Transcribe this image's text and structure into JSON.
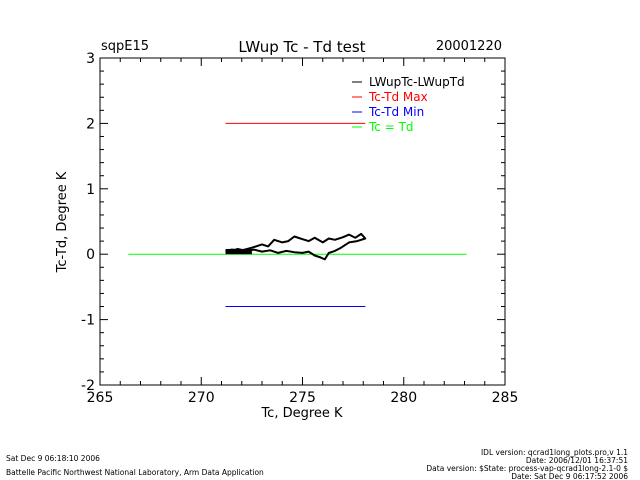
{
  "header": {
    "site": "sqpE15",
    "title": "LWup Tc - Td test",
    "date": "20001220"
  },
  "footer": {
    "left_line1": "Sat Dec  9 06:18:10 2006",
    "left_line2": "Battelle Pacific Northwest National Laboratory, Arm Data Application",
    "right_line1": "IDL version: qcrad1long_plots.pro,v 1.1",
    "right_line2": "Date: 2006/12/01 16:37:51",
    "right_line3": "Data version: $State: process-vap-qcrad1long-2.1-0 $",
    "right_line4": "Date: Sat Dec  9 06:17:52 2006"
  },
  "chart_data": {
    "type": "line",
    "xlabel": "Tc, Degree K",
    "ylabel": "Tc-Td, Degree K",
    "xlim": [
      265,
      285
    ],
    "ylim": [
      -2,
      3
    ],
    "xticks": [
      "265",
      "270",
      "275",
      "280",
      "285"
    ],
    "yticks": [
      "-2",
      "-1",
      "0",
      "1",
      "2",
      "3"
    ],
    "legend_position": "top-right",
    "series": [
      {
        "name": "LWupTc-LWupTd",
        "color": "#000000",
        "x": [
          271.2,
          271.5,
          272.0,
          272.5,
          273.0,
          273.3,
          273.6,
          274.0,
          274.3,
          274.6,
          275.0,
          275.3,
          275.6,
          276.0,
          276.3,
          276.6,
          277.0,
          277.3,
          277.6,
          277.9,
          278.1,
          277.7,
          277.3,
          276.9,
          276.6,
          276.3,
          276.1,
          275.9,
          275.6,
          275.3,
          275.0,
          274.6,
          274.2,
          273.8,
          273.4,
          273.0,
          272.6,
          272.2,
          271.8,
          271.4,
          271.2
        ],
        "y": [
          0.05,
          0.07,
          0.06,
          0.1,
          0.15,
          0.12,
          0.22,
          0.18,
          0.2,
          0.27,
          0.23,
          0.2,
          0.25,
          0.18,
          0.24,
          0.22,
          0.26,
          0.3,
          0.25,
          0.31,
          0.24,
          0.2,
          0.18,
          0.1,
          0.05,
          0.02,
          -0.08,
          -0.05,
          -0.02,
          0.04,
          0.02,
          0.03,
          0.05,
          0.02,
          0.06,
          0.04,
          0.07,
          0.05,
          0.08,
          0.04,
          0.05
        ]
      },
      {
        "name": "Tc-Td Max",
        "color": "#ff0000",
        "x": [
          271.2,
          278.1
        ],
        "y": [
          2,
          2
        ]
      },
      {
        "name": "Tc-Td Min",
        "color": "#0000ff",
        "x": [
          271.2,
          278.1
        ],
        "y": [
          -0.8,
          -0.8
        ]
      },
      {
        "name": "Tc = Td",
        "color": "#00ff00",
        "x": [
          266.4,
          283.1
        ],
        "y": [
          0,
          0
        ]
      }
    ]
  }
}
